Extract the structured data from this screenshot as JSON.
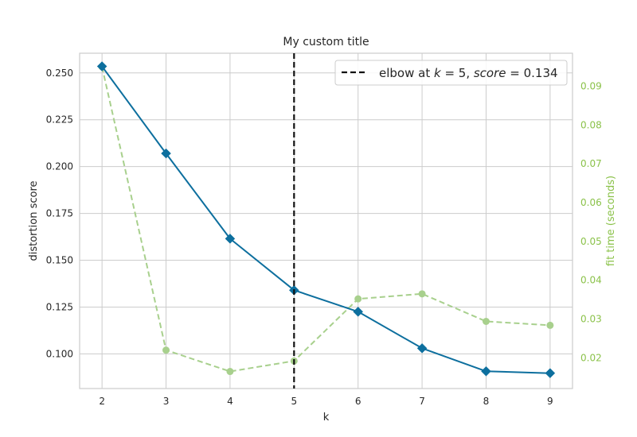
{
  "chart_data": {
    "type": "line",
    "title": "My custom title",
    "xlabel": "k",
    "ylabel": "distortion score",
    "y2label": "fit time (seconds)",
    "x": [
      2,
      3,
      4,
      5,
      6,
      7,
      8,
      9
    ],
    "xlim": [
      1.65,
      9.35
    ],
    "ylim": [
      0.0815,
      0.2605
    ],
    "y2lim": [
      0.0121,
      0.0985
    ],
    "yticks": [
      0.1,
      0.125,
      0.15,
      0.175,
      0.2,
      0.225,
      0.25
    ],
    "ytick_labels": [
      "0.100",
      "0.125",
      "0.150",
      "0.175",
      "0.200",
      "0.225",
      "0.250"
    ],
    "y2ticks": [
      0.02,
      0.03,
      0.04,
      0.05,
      0.06,
      0.07,
      0.08,
      0.09
    ],
    "y2tick_labels": [
      "0.02",
      "0.03",
      "0.04",
      "0.05",
      "0.06",
      "0.07",
      "0.08",
      "0.09"
    ],
    "xtick_labels": [
      "2",
      "3",
      "4",
      "5",
      "6",
      "7",
      "8",
      "9"
    ],
    "grid": true,
    "legend_position": "top-right",
    "series": [
      {
        "role": "distortion",
        "axis": "left",
        "style": "solid",
        "marker": "diamond",
        "color": "#0d6f9e",
        "values": [
          0.2535,
          0.207,
          0.1615,
          0.134,
          0.1225,
          0.103,
          0.0907,
          0.0897
        ]
      },
      {
        "role": "fit_time",
        "axis": "right",
        "style": "dashed",
        "marker": "circle",
        "color": "#a8d08d",
        "values": [
          0.095,
          0.022,
          0.0165,
          0.0192,
          0.0352,
          0.0365,
          0.0294,
          0.0284
        ]
      }
    ],
    "elbow": {
      "k": 5,
      "color": "#111111",
      "legend_prefix": "elbow at ",
      "legend_k_symbol": "k",
      "legend_eq1": " = 5, ",
      "legend_score_symbol": "score",
      "legend_eq2": " = 0.134"
    }
  }
}
